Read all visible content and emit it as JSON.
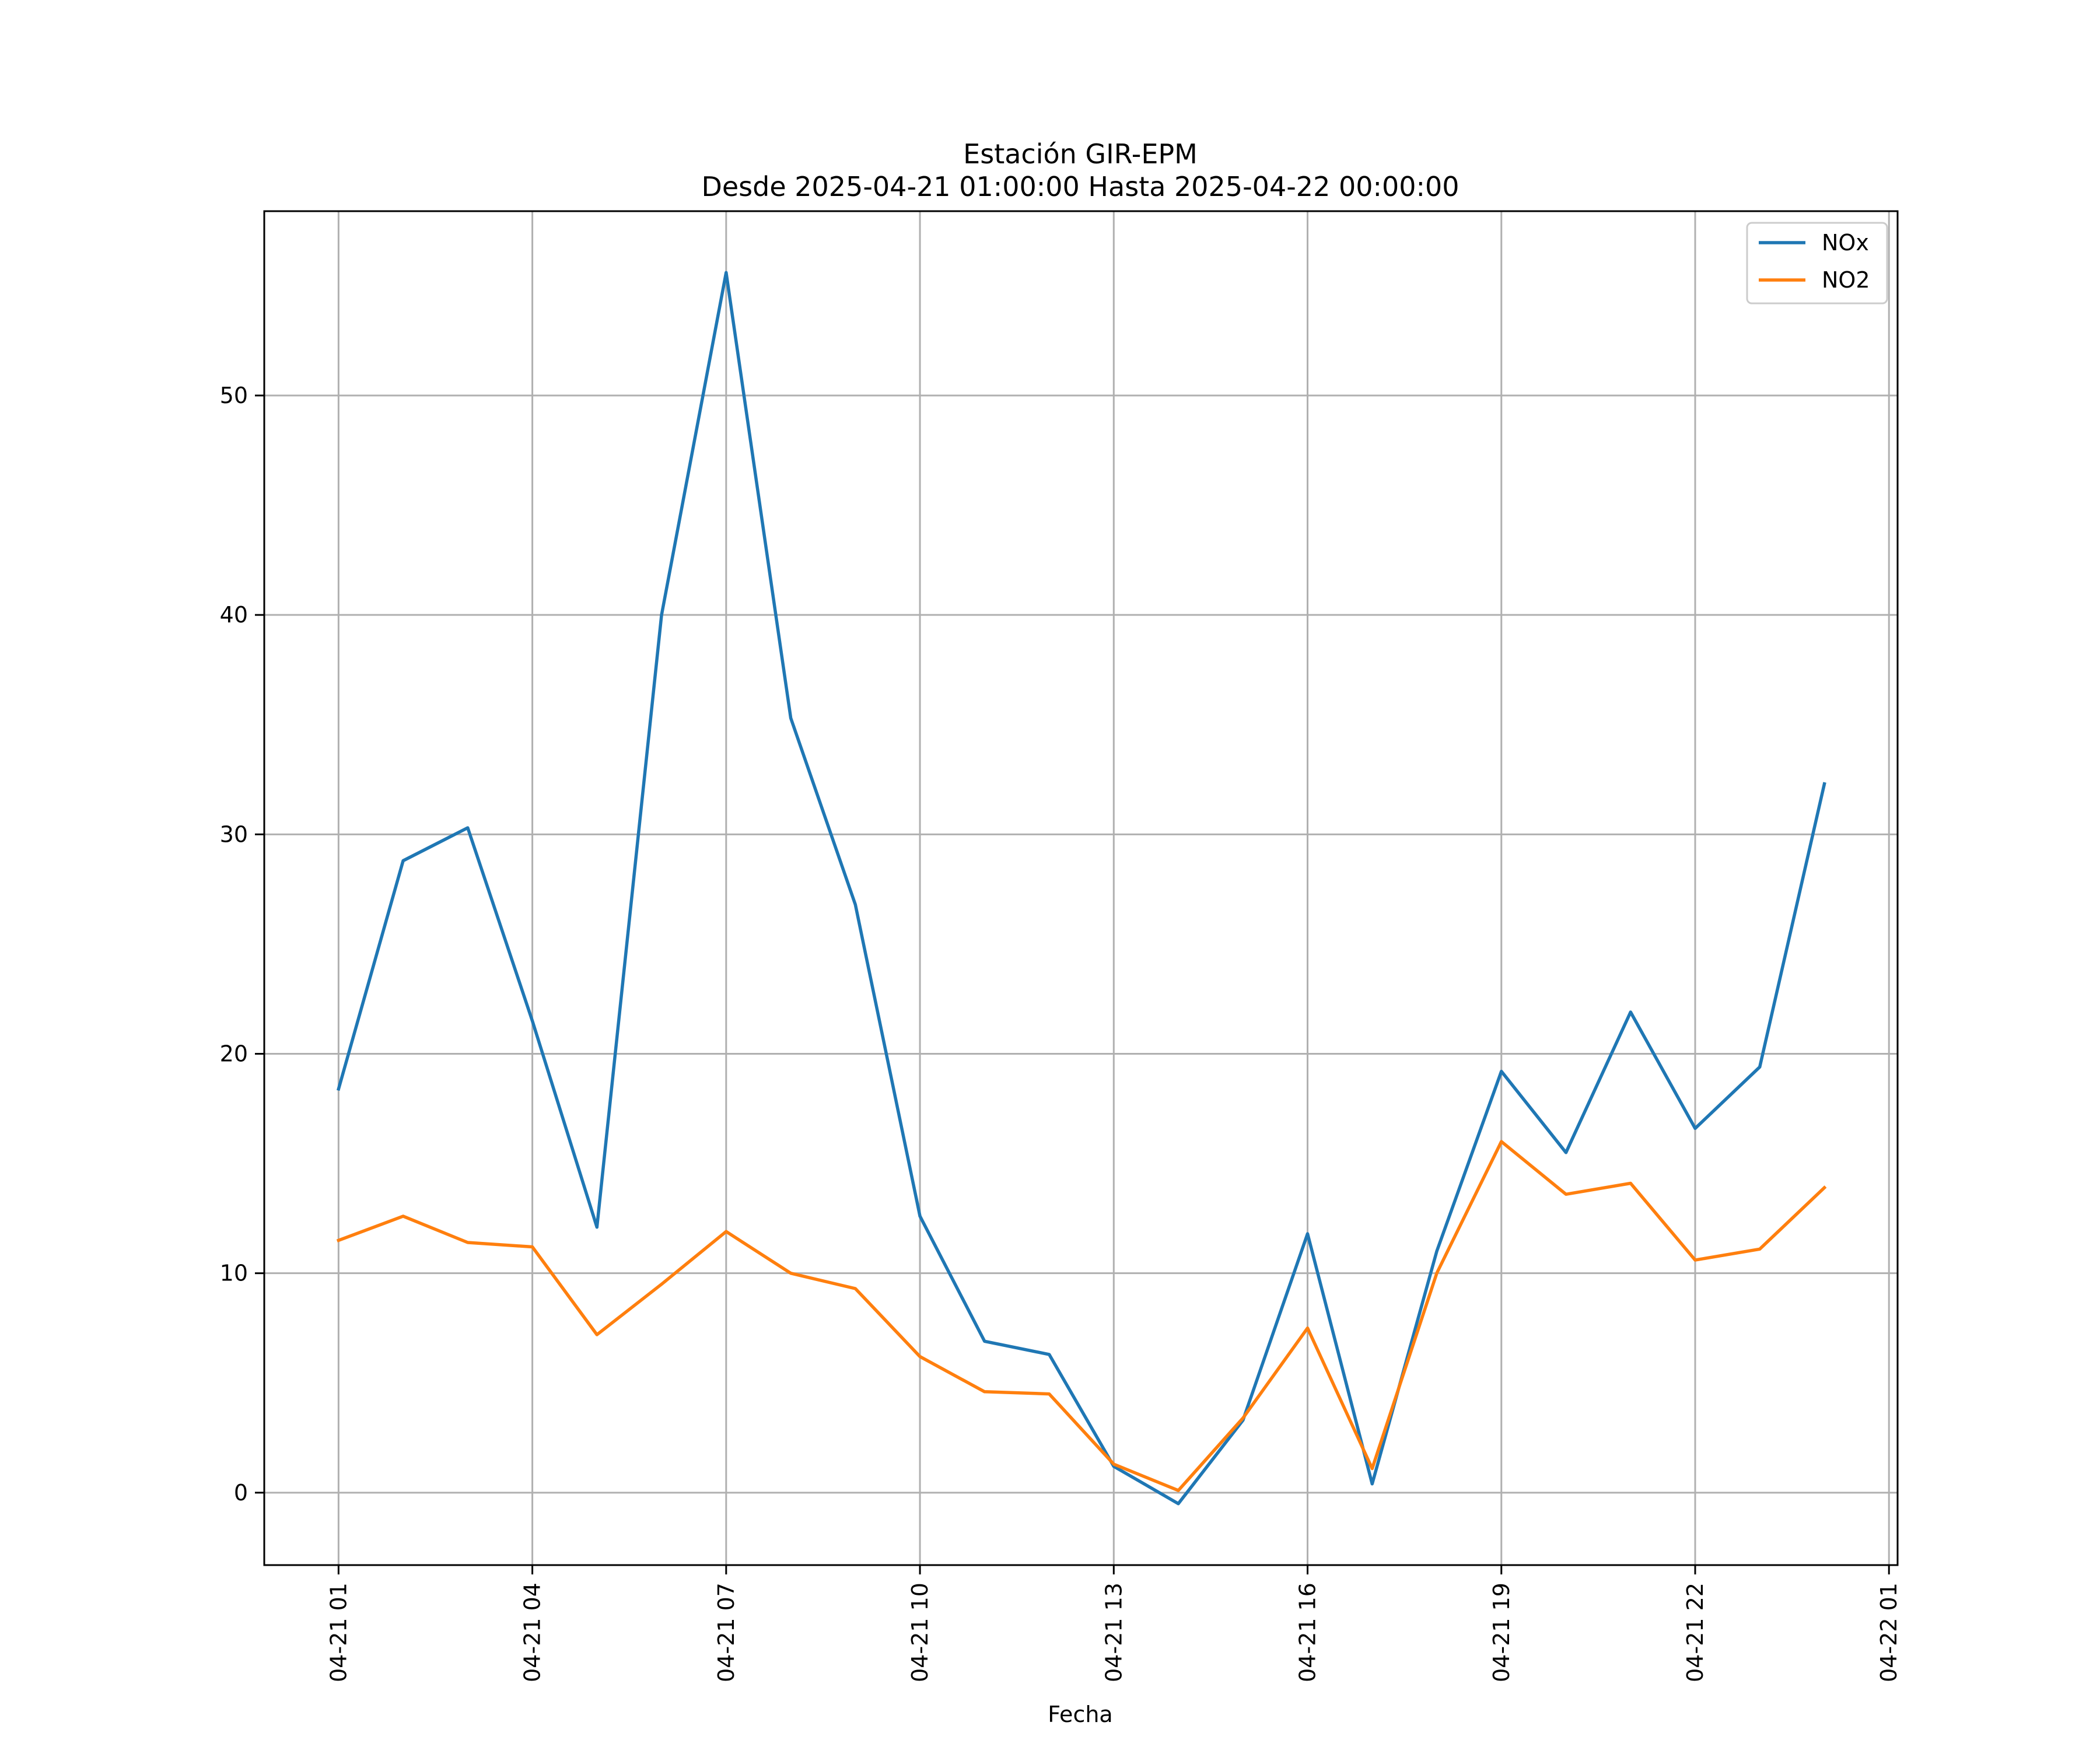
{
  "chart_data": {
    "type": "line",
    "title": "Estación GIR-EPM",
    "subtitle": "Desde 2025-04-21 01:00:00 Hasta 2025-04-22 00:00:00",
    "xlabel": "Fecha",
    "ylabel": "",
    "x": [
      "2025-04-21 01:00",
      "2025-04-21 02:00",
      "2025-04-21 03:00",
      "2025-04-21 04:00",
      "2025-04-21 05:00",
      "2025-04-21 06:00",
      "2025-04-21 07:00",
      "2025-04-21 08:00",
      "2025-04-21 09:00",
      "2025-04-21 10:00",
      "2025-04-21 11:00",
      "2025-04-21 12:00",
      "2025-04-21 13:00",
      "2025-04-21 14:00",
      "2025-04-21 15:00",
      "2025-04-21 16:00",
      "2025-04-21 17:00",
      "2025-04-21 18:00",
      "2025-04-21 19:00",
      "2025-04-21 20:00",
      "2025-04-21 21:00",
      "2025-04-21 22:00",
      "2025-04-21 23:00",
      "2025-04-22 00:00"
    ],
    "x_ticks": [
      "2025-04-21 01:00",
      "2025-04-21 04:00",
      "2025-04-21 07:00",
      "2025-04-21 10:00",
      "2025-04-21 13:00",
      "2025-04-21 16:00",
      "2025-04-21 19:00",
      "2025-04-21 22:00",
      "2025-04-22 01:00"
    ],
    "x_tick_labels": [
      "04-21 01",
      "04-21 04",
      "04-21 07",
      "04-21 10",
      "04-21 13",
      "04-21 16",
      "04-21 19",
      "04-21 22",
      "04-22 01"
    ],
    "xlim": [
      "2025-04-20 23:51",
      "2025-04-22 01:08"
    ],
    "y_ticks": [
      0,
      10,
      20,
      30,
      40,
      50
    ],
    "ylim": [
      -3.3,
      58.4
    ],
    "grid": true,
    "legend_position": "top-right",
    "series": [
      {
        "name": "NOx",
        "color": "#1f77b4",
        "values": [
          18.4,
          28.8,
          30.3,
          21.5,
          12.1,
          40.0,
          55.6,
          35.3,
          26.8,
          12.6,
          6.9,
          6.3,
          1.2,
          -0.5,
          3.3,
          11.8,
          0.4,
          11.0,
          19.2,
          15.5,
          21.9,
          16.6,
          19.4,
          32.3
        ]
      },
      {
        "name": "NO2",
        "color": "#ff7f0e",
        "values": [
          11.5,
          12.6,
          11.4,
          11.2,
          7.2,
          9.5,
          11.9,
          10.0,
          9.3,
          6.2,
          4.6,
          4.5,
          1.3,
          0.1,
          3.4,
          7.5,
          1.1,
          10.0,
          16.0,
          13.6,
          14.1,
          10.6,
          11.1,
          13.9
        ]
      }
    ]
  }
}
